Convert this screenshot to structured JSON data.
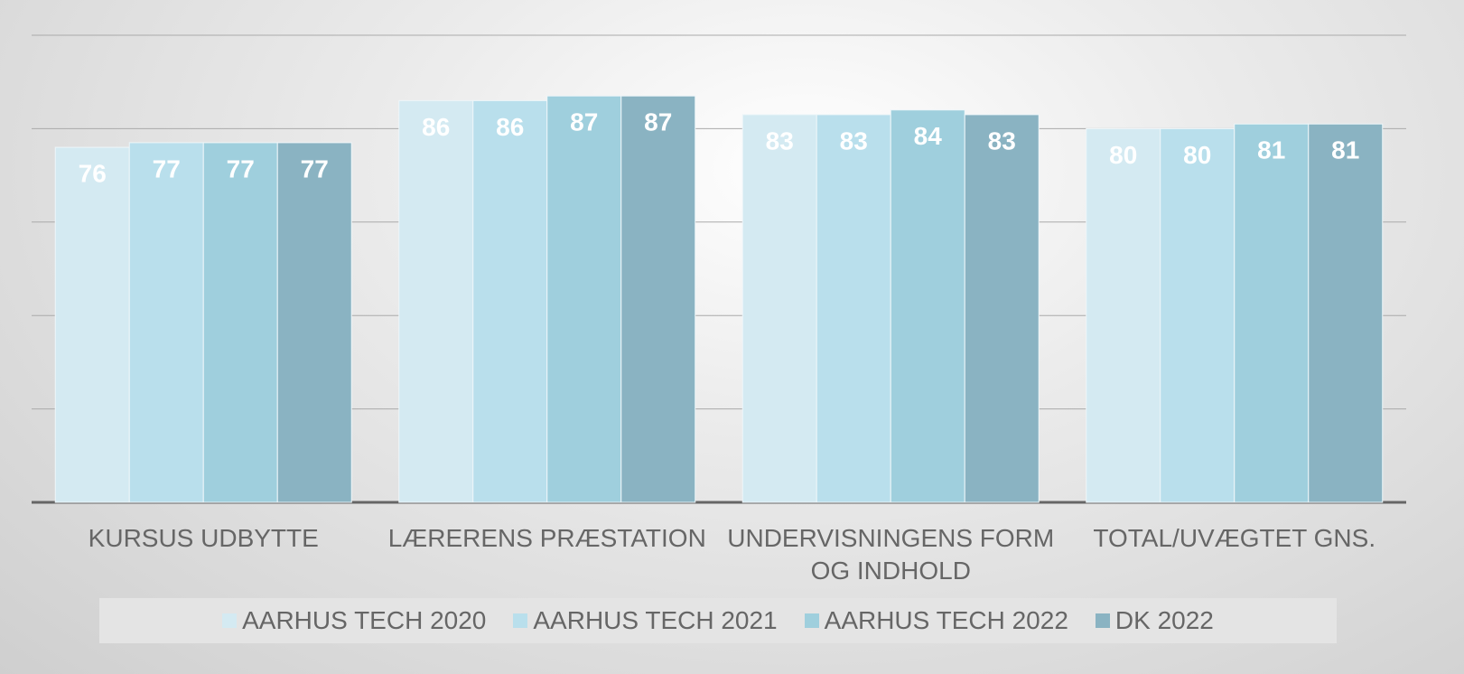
{
  "chart_data": {
    "type": "bar",
    "categories": [
      "KURSUS UDBYTTE",
      "LÆRERENS PRÆSTATION",
      "UNDERVISNINGENS FORM OG INDHOLD",
      "TOTAL/UVÆGTET GNS."
    ],
    "series": [
      {
        "name": "AARHUS TECH 2020",
        "color": "#d4eaf2",
        "values": [
          76,
          86,
          83,
          80
        ]
      },
      {
        "name": "AARHUS TECH 2021",
        "color": "#b9dfec",
        "values": [
          77,
          86,
          83,
          80
        ]
      },
      {
        "name": "AARHUS TECH 2022",
        "color": "#9fcfdd",
        "values": [
          77,
          87,
          84,
          81
        ]
      },
      {
        "name": "DK 2022",
        "color": "#8ab3c2",
        "values": [
          77,
          87,
          83,
          81
        ]
      }
    ],
    "ylim": [
      0,
      100
    ],
    "yticks": [
      0,
      20,
      40,
      60,
      80,
      100
    ],
    "grid": true,
    "legend": "bottom"
  }
}
